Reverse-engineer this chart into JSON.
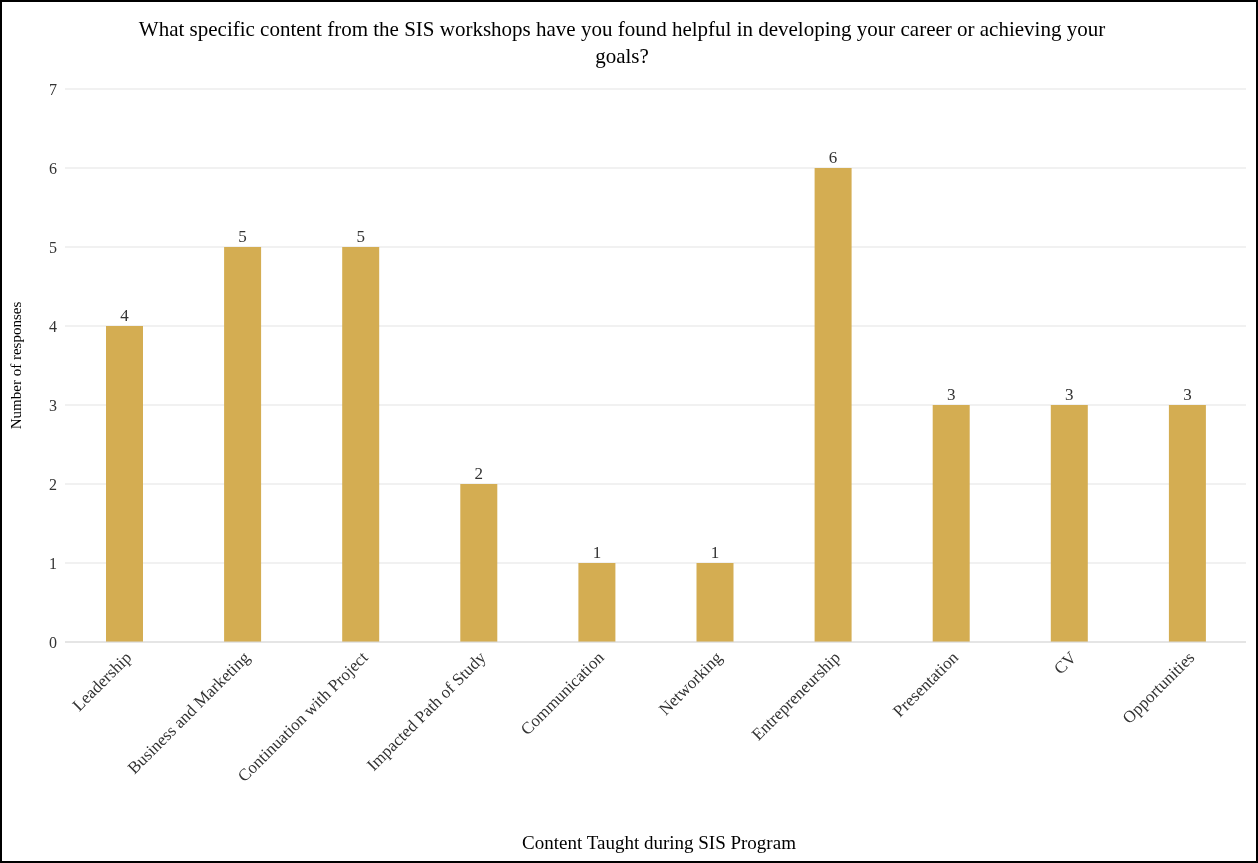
{
  "chart_data": {
    "type": "bar",
    "title": "What specific content from the SIS workshops have you found helpful in developing your career or achieving your goals?",
    "xlabel": "Content Taught during SIS Program",
    "ylabel": "Number of responses",
    "categories": [
      "Leadership",
      "Business and Marketing",
      "Continuation with Project",
      "Impacted Path of Study",
      "Communication",
      "Networking",
      "Entrepreneurship",
      "Presentation",
      "CV",
      "Opportunities"
    ],
    "values": [
      4,
      5,
      5,
      2,
      1,
      1,
      6,
      3,
      3,
      3
    ],
    "color": "#d4ad52",
    "ylim": [
      0,
      7
    ],
    "yticks": [
      0,
      1,
      2,
      3,
      4,
      5,
      6,
      7
    ],
    "grid": "y",
    "data_labels": true
  }
}
